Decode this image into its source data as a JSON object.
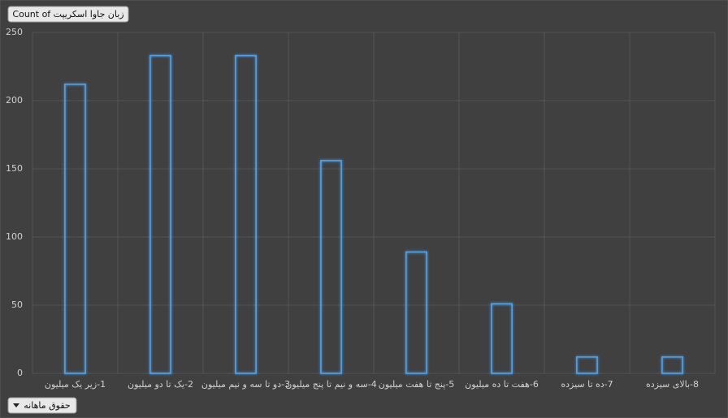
{
  "chart_data": {
    "type": "bar",
    "value_field": "Count of زبان  جاوا اسکریپت",
    "axis_field": "حقوق ماهانه",
    "categories": [
      "1-زیر یک میلیون",
      "2-یک تا دو میلیون",
      "3-دو تا سه و نیم میلیون",
      "4-سه و نیم تا پنج میلیون",
      "5-پنج تا هفت میلیون",
      "6-هفت تا ده میلیون",
      "7-ده تا سیزده",
      "8-بالای سیزده"
    ],
    "values": [
      212,
      233,
      233,
      156,
      89,
      51,
      12,
      12
    ],
    "color": "#4ea3ec",
    "ylim": [
      0,
      250
    ],
    "yticks": [
      0,
      50,
      100,
      150,
      200,
      250
    ],
    "grid": true
  }
}
